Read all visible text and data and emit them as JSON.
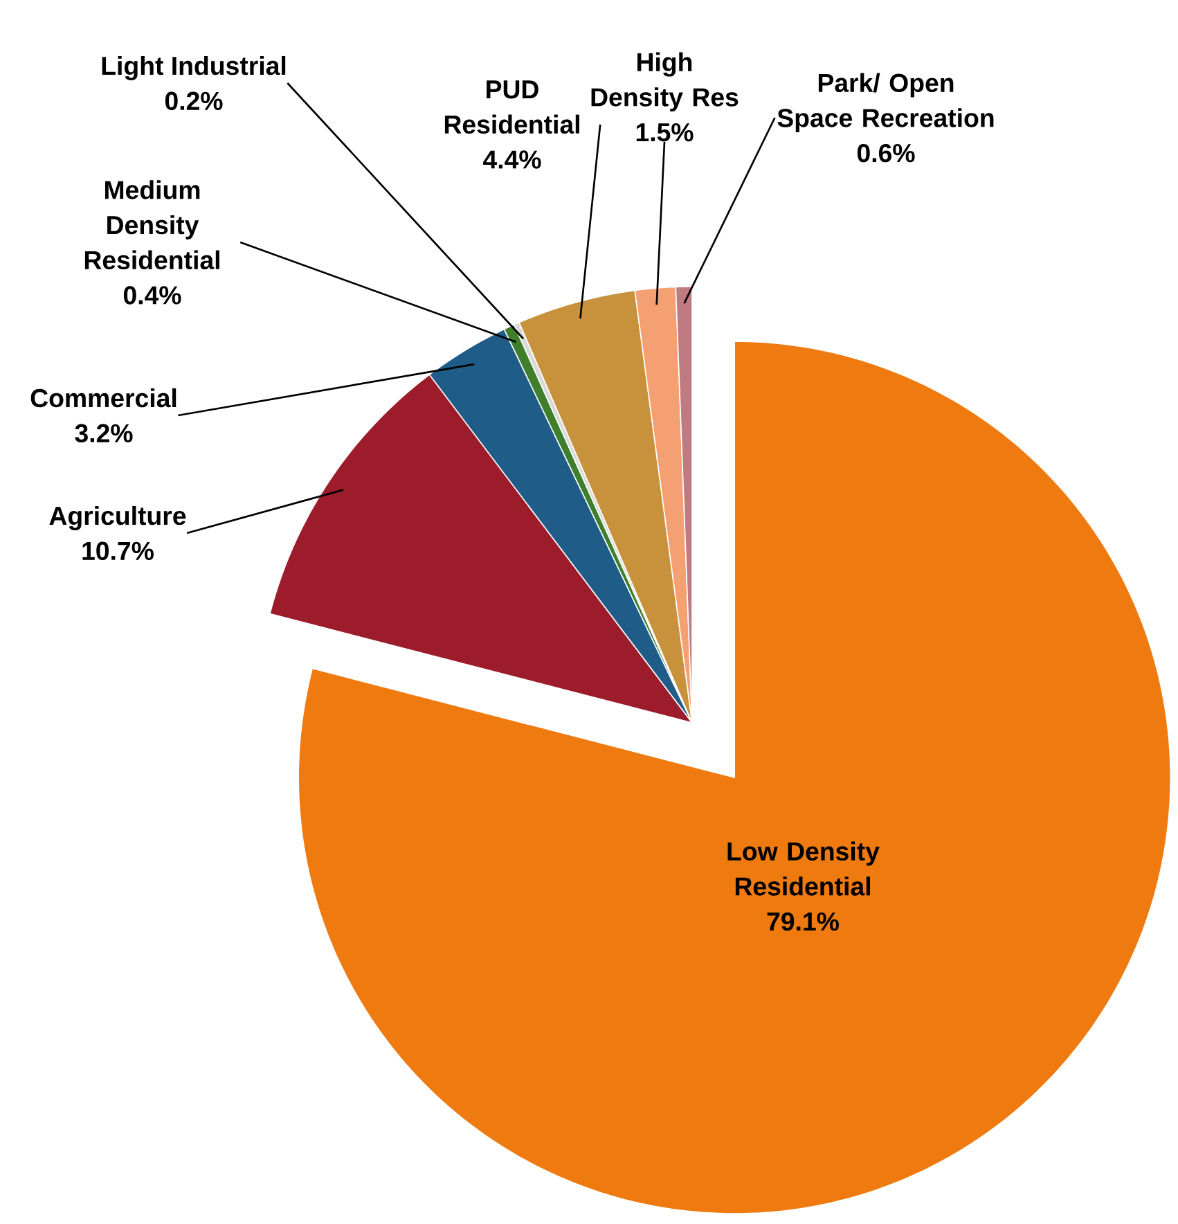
{
  "chart_data": {
    "type": "pie",
    "categories": [
      "Low Density Residential",
      "Agriculture",
      "Commercial",
      "Medium Density Residential",
      "Light Industrial",
      "PUD Residential",
      "High Density Res",
      "Park/ Open Space Recreation"
    ],
    "values": [
      79.1,
      10.7,
      3.2,
      0.4,
      0.2,
      4.4,
      1.5,
      0.6
    ],
    "value_labels": [
      "79.1%",
      "10.7%",
      "3.2%",
      "0.4%",
      "0.2%",
      "4.4%",
      "1.5%",
      "0.6%"
    ],
    "colors": [
      "#ee7a10",
      "#9c1c2b",
      "#1f5d88",
      "#3f7f2c",
      "#d9d9d9",
      "#c8923c",
      "#f4a072",
      "#c07a82"
    ]
  }
}
